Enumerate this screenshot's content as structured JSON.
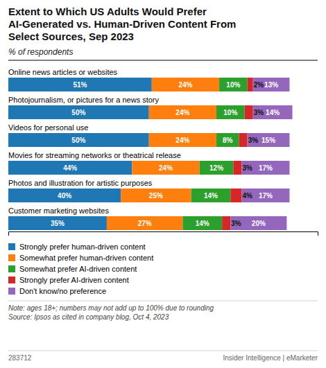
{
  "chart_data": {
    "type": "bar",
    "orientation": "horizontal",
    "stacked": true,
    "data_labels": true,
    "grid": false,
    "legend": "bottom",
    "tick_labels": false,
    "title": "Extent to Which US Adults Would Prefer\nAI-Generated vs. Human-Driven Content From\nSelect Sources, Sep 2023",
    "subtitle": "% of respondents",
    "categories": [
      "Online news articles or websites",
      "Photojournalism, or pictures for a news story",
      "Videos for personal use",
      "Movies for streaming networks or theatrical release",
      "Photos and illustration for artistic purposes",
      "Customer marketing websites"
    ],
    "series": [
      {
        "name": "Strongly prefer human-driven content",
        "values": [
          51,
          50,
          50,
          44,
          40,
          35
        ],
        "value_labels": [
          "51%",
          "50%",
          "50%",
          "44%",
          "40%",
          "35%"
        ]
      },
      {
        "name": "Somewhat prefer human-driven content",
        "values": [
          24,
          24,
          24,
          24,
          25,
          27
        ],
        "value_labels": [
          "24%",
          "24%",
          "24%",
          "24%",
          "25%",
          "27%"
        ]
      },
      {
        "name": "Somewhat prefer AI-driven content",
        "values": [
          10,
          10,
          8,
          12,
          14,
          14
        ],
        "value_labels": [
          "10%",
          "10%",
          "8%",
          "12%",
          "14%",
          "14%"
        ]
      },
      {
        "name": "Strongly prefer AI-driven content",
        "values": [
          2,
          3,
          3,
          3,
          4,
          3
        ],
        "value_labels": [
          "2%",
          "3%",
          "3%",
          "3%",
          "4%",
          "3%"
        ]
      },
      {
        "name": "Don't know/no preference",
        "values": [
          13,
          14,
          15,
          17,
          17,
          20
        ],
        "value_labels": [
          "13%",
          "14%",
          "15%",
          "17%",
          "17%",
          "20%"
        ]
      }
    ],
    "xlim": [
      0,
      110
    ],
    "note": "Note: ages 18+; numbers may not add up to 100% due to rounding\nSource: Ipsos as cited in company blog, Oct 4, 2023",
    "footer_left": "283712",
    "footer_right": "Insider Intelligence | eMarketer"
  }
}
